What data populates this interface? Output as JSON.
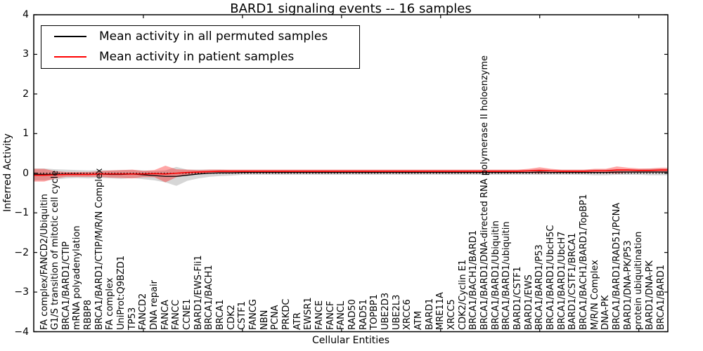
{
  "figure": {
    "title": "BARD1 signaling events -- 16 samples"
  },
  "axes": {
    "xlabel": "Cellular Entities",
    "ylabel": "Inferred Activity"
  },
  "legend": {
    "items": [
      {
        "label": "Mean activity in all permuted samples",
        "color": "#000000"
      },
      {
        "label": "Mean activity in patient samples",
        "color": "#ff0000"
      }
    ]
  },
  "chart_data": {
    "type": "line",
    "title": "BARD1 signaling events -- 16 samples",
    "xlabel": "Cellular Entities",
    "ylabel": "Inferred Activity",
    "ylim": [
      -4,
      4
    ],
    "yticks": [
      4,
      3,
      2,
      1,
      0,
      -1,
      -2,
      -3,
      -4
    ],
    "xtick_indices": [
      9,
      18,
      27,
      36,
      45,
      54
    ],
    "grid": false,
    "legend_position": "upper left",
    "zero_line": {
      "y": 0,
      "style": "dotted",
      "color": "#000000"
    },
    "categories": [
      "FA complex/FANCD2/Ubiquitin",
      "G1/S transition of mitotic cell cycle",
      "BRCA1/BARD1/CTIP",
      "mRNA polyadenylation",
      "RBBP8",
      "BRCA1/BARD1/CTIP/M/R/N Complex",
      "FA complex",
      "UniProt:Q9BZD1",
      "TP53",
      "FANCD2",
      "DNA repair",
      "FANCA",
      "FANCC",
      "CCNE1",
      "BARD1/EWS-Fli1",
      "BRCA1/BACH1",
      "BRCA1",
      "CDK2",
      "CSTF1",
      "FANCG",
      "NBN",
      "PCNA",
      "PRKDC",
      "ATR",
      "EWSR1",
      "FANCE",
      "FANCF",
      "FANCL",
      "RAD50",
      "RAD51",
      "TOPBP1",
      "UBE2D3",
      "UBE2L3",
      "XRCC6",
      "ATM",
      "BARD1",
      "MRE11A",
      "XRCC5",
      "CDK2/Cyclin E1",
      "BRCA1/BACH1/BARD1",
      "BRCA1/BARD1/DNA-directed RNA polymerase II holoenzyme",
      "BRCA1/BARD1/Ubiquitin",
      "BRCA1/BARD1/ubiquitin",
      "BARD1/CSTF1",
      "BARD1/EWS",
      "BRCA1/BARD1/P53",
      "BRCA1/BARD1/UbcH5C",
      "BRCA1/BARD1/UbcH7",
      "BARD1/CSTF1/BRCA1",
      "BRCA1/BACH1/BARD1/TopBP1",
      "M/R/N Complex",
      "DNA-PK",
      "BRCA1/BARD1/RAD51/PCNA",
      "BARD1/DNA-PK/P53",
      "protein ubiquitination",
      "BARD1/DNA-PK",
      "BRCA1/BARD1"
    ],
    "series": [
      {
        "name": "Mean activity in all permuted samples",
        "color": "#000000",
        "values": [
          -0.03,
          -0.03,
          -0.02,
          -0.02,
          -0.03,
          -0.02,
          -0.03,
          -0.03,
          -0.02,
          -0.04,
          -0.06,
          -0.08,
          -0.08,
          -0.05,
          -0.02,
          0.0,
          0.01,
          0.01,
          0.02,
          0.02,
          0.02,
          0.02,
          0.02,
          0.02,
          0.02,
          0.02,
          0.02,
          0.02,
          0.02,
          0.02,
          0.02,
          0.02,
          0.02,
          0.02,
          0.02,
          0.02,
          0.02,
          0.02,
          0.02,
          0.02,
          0.02,
          0.02,
          0.02,
          0.02,
          0.02,
          0.03,
          0.02,
          0.02,
          0.02,
          0.02,
          0.02,
          0.02,
          0.03,
          0.03,
          0.03,
          0.03,
          0.03
        ]
      },
      {
        "name": "Mean activity in patient samples",
        "color": "#ff0000",
        "values": [
          -0.05,
          -0.04,
          -0.03,
          -0.03,
          -0.03,
          -0.02,
          -0.02,
          -0.02,
          -0.02,
          -0.02,
          -0.01,
          -0.02,
          0.0,
          0.02,
          0.03,
          0.04,
          0.05,
          0.05,
          0.05,
          0.05,
          0.05,
          0.05,
          0.05,
          0.05,
          0.05,
          0.05,
          0.05,
          0.05,
          0.05,
          0.05,
          0.05,
          0.05,
          0.05,
          0.05,
          0.05,
          0.05,
          0.05,
          0.05,
          0.05,
          0.05,
          0.05,
          0.05,
          0.05,
          0.05,
          0.06,
          0.07,
          0.06,
          0.05,
          0.05,
          0.05,
          0.06,
          0.06,
          0.08,
          0.08,
          0.07,
          0.07,
          0.08
        ]
      }
    ],
    "bands": [
      {
        "name": "permuted-samples-std-band",
        "color": "#999999",
        "opacity": 0.4,
        "series_index": 0,
        "half_widths": [
          0.15,
          0.13,
          0.11,
          0.1,
          0.1,
          0.1,
          0.1,
          0.11,
          0.1,
          0.11,
          0.12,
          0.15,
          0.24,
          0.14,
          0.11,
          0.09,
          0.08,
          0.07,
          0.06,
          0.06,
          0.06,
          0.06,
          0.06,
          0.06,
          0.06,
          0.06,
          0.06,
          0.06,
          0.06,
          0.06,
          0.06,
          0.06,
          0.06,
          0.06,
          0.06,
          0.06,
          0.06,
          0.06,
          0.06,
          0.06,
          0.06,
          0.06,
          0.06,
          0.06,
          0.06,
          0.07,
          0.06,
          0.06,
          0.06,
          0.06,
          0.07,
          0.07,
          0.07,
          0.07,
          0.07,
          0.08,
          0.08
        ]
      },
      {
        "name": "patient-samples-std-band",
        "color": "#ff0000",
        "opacity": 0.35,
        "series_index": 1,
        "half_widths": [
          0.16,
          0.09,
          0.06,
          0.06,
          0.06,
          0.07,
          0.09,
          0.1,
          0.11,
          0.08,
          0.09,
          0.21,
          0.1,
          0.07,
          0.05,
          0.05,
          0.04,
          0.04,
          0.04,
          0.04,
          0.04,
          0.04,
          0.04,
          0.04,
          0.04,
          0.04,
          0.04,
          0.04,
          0.04,
          0.04,
          0.04,
          0.04,
          0.04,
          0.04,
          0.04,
          0.04,
          0.04,
          0.04,
          0.04,
          0.04,
          0.04,
          0.04,
          0.04,
          0.04,
          0.05,
          0.08,
          0.05,
          0.04,
          0.04,
          0.04,
          0.05,
          0.05,
          0.09,
          0.06,
          0.05,
          0.05,
          0.06
        ]
      }
    ]
  }
}
